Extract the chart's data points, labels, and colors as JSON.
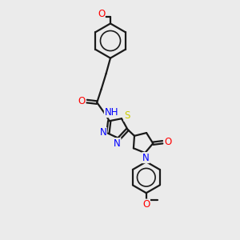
{
  "background_color": "#ebebeb",
  "line_color": "#1a1a1a",
  "bond_width": 1.6,
  "colors": {
    "N": "#0000ff",
    "O": "#ff0000",
    "S": "#cccc00",
    "C": "#1a1a1a"
  },
  "font_size": 8.5
}
